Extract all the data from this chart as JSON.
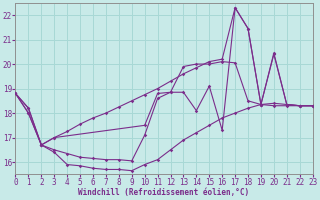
{
  "bg": "#c8eae8",
  "grid_color": "#a8d8d5",
  "lc": "#7b2d8b",
  "xlabel": "Windchill (Refroidissement éolien,°C)",
  "xlim": [
    0,
    23
  ],
  "ylim": [
    15.5,
    22.5
  ],
  "yticks": [
    16,
    17,
    18,
    19,
    20,
    21,
    22
  ],
  "xticks": [
    0,
    1,
    2,
    3,
    4,
    5,
    6,
    7,
    8,
    9,
    10,
    11,
    12,
    13,
    14,
    15,
    16,
    17,
    18,
    19,
    20,
    21,
    22,
    23
  ],
  "lines": [
    {
      "x": [
        0,
        1,
        2,
        3,
        4,
        5,
        6,
        7,
        8,
        9,
        10,
        11,
        12,
        13,
        14,
        15,
        16,
        17,
        18,
        19,
        20,
        21,
        22,
        23
      ],
      "y": [
        18.8,
        18.2,
        16.7,
        16.4,
        15.9,
        15.85,
        15.75,
        15.7,
        15.7,
        15.65,
        15.9,
        16.1,
        16.5,
        16.9,
        17.2,
        17.5,
        17.8,
        18.0,
        18.2,
        18.35,
        18.4,
        18.35,
        18.3,
        18.3
      ]
    },
    {
      "x": [
        0,
        1,
        2,
        3,
        4,
        5,
        6,
        7,
        8,
        9,
        10,
        11,
        12,
        13,
        14,
        15,
        16,
        17,
        18,
        19,
        20,
        21,
        22,
        23
      ],
      "y": [
        18.8,
        18.2,
        16.7,
        16.5,
        16.35,
        16.2,
        16.15,
        16.1,
        16.1,
        16.05,
        17.1,
        18.6,
        18.85,
        19.9,
        20.0,
        20.0,
        20.1,
        20.05,
        18.5,
        18.35,
        20.4,
        18.35,
        18.3,
        18.3
      ]
    },
    {
      "x": [
        0,
        1,
        2,
        3,
        4,
        5,
        6,
        7,
        8,
        9,
        10,
        11,
        12,
        13,
        14,
        15,
        16,
        17,
        18,
        19,
        20,
        21,
        22,
        23
      ],
      "y": [
        18.8,
        18.0,
        16.7,
        17.0,
        17.25,
        17.55,
        17.8,
        18.0,
        18.25,
        18.5,
        18.75,
        19.0,
        19.3,
        19.6,
        19.85,
        20.1,
        20.2,
        22.3,
        21.45,
        18.35,
        18.3,
        18.3,
        18.3,
        18.3
      ]
    },
    {
      "x": [
        0,
        1,
        2,
        3,
        10,
        11,
        12,
        13,
        14,
        15,
        16,
        17,
        18,
        19,
        20,
        21,
        22,
        23
      ],
      "y": [
        18.8,
        18.0,
        16.7,
        17.0,
        17.5,
        18.8,
        18.85,
        18.85,
        18.1,
        19.1,
        17.3,
        22.3,
        21.45,
        18.35,
        20.45,
        18.35,
        18.3,
        18.3
      ]
    }
  ]
}
